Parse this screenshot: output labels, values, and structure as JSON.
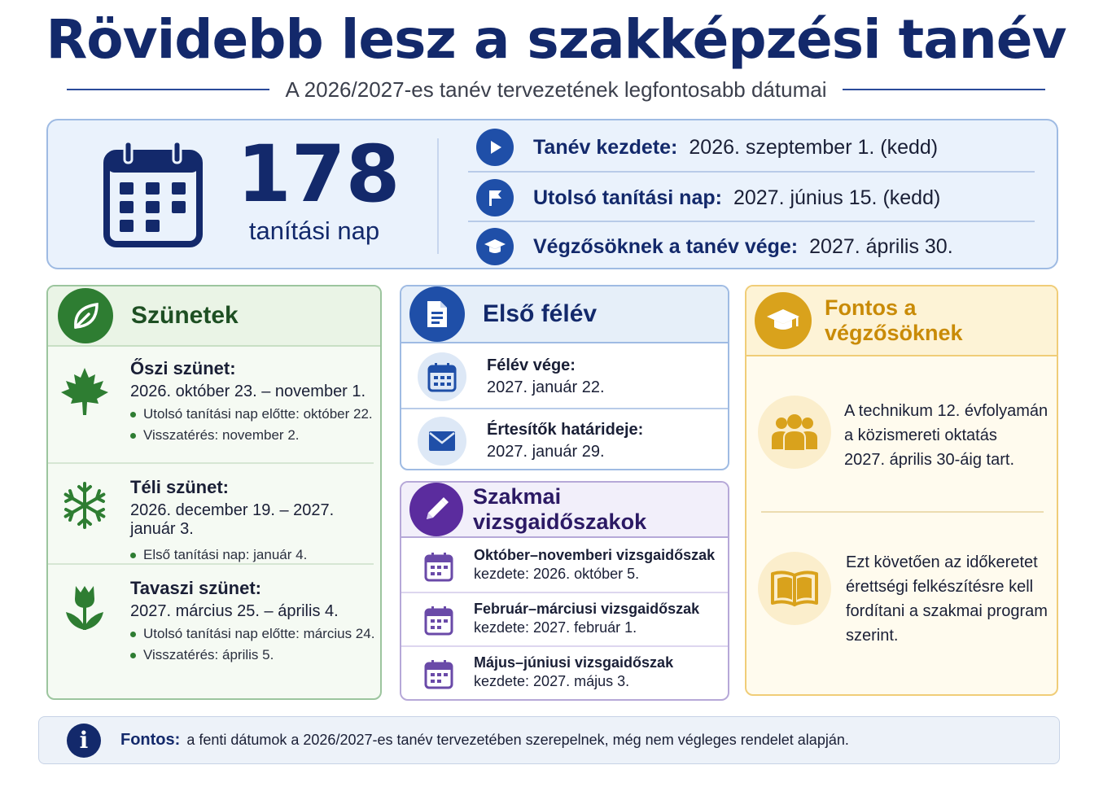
{
  "header": {
    "title": "Rövidebb lesz a szakképzési tanév",
    "subtitle": "A 2026/2027-es tanév tervezetének legfontosabb dátumai"
  },
  "summary": {
    "count": "178",
    "count_label": "tanítási nap",
    "icon": "calendar-icon",
    "key_dates": [
      {
        "icon": "play-icon",
        "label": "Tanév kezdete:",
        "value": "2026. szeptember 1. (kedd)"
      },
      {
        "icon": "flag-icon",
        "label": "Utolsó tanítási nap:",
        "value": "2027. június 15. (kedd)"
      },
      {
        "icon": "graduation-cap-icon",
        "label": "Végzősöknek a tanév vége:",
        "value": "2027. április 30."
      }
    ]
  },
  "breaks": {
    "title": "Szünetek",
    "icon": "leaf-icon",
    "items": [
      {
        "icon": "maple-leaf-icon",
        "title": "Őszi szünet:",
        "range": "2026. október 23. – november 1.",
        "bullets": [
          "Utolsó tanítási nap előtte: október 22.",
          "Visszatérés: november 2."
        ]
      },
      {
        "icon": "snowflake-icon",
        "title": "Téli szünet:",
        "range": "2026. december 19. – 2027. január 3.",
        "bullets": [
          "Első tanítási nap: január 4."
        ]
      },
      {
        "icon": "tulip-icon",
        "title": "Tavaszi szünet:",
        "range": "2027. március 25. – április 4.",
        "bullets": [
          "Utolsó tanítási nap előtte: március 24.",
          "Visszatérés: április 5."
        ]
      }
    ]
  },
  "first_semester": {
    "title": "Első félév",
    "icon": "document-icon",
    "rows": [
      {
        "icon": "calendar-icon",
        "label": "Félév vége:",
        "value": "2027. január 22."
      },
      {
        "icon": "envelope-icon",
        "label": "Értesítők határideje:",
        "value": "2027. január 29."
      }
    ]
  },
  "exams": {
    "title": "Szakmai vizsgaidőszakok",
    "icon": "pencil-icon",
    "rows": [
      {
        "icon": "calendar-icon",
        "label": "Október–novemberi vizsgaidőszak",
        "value": "kezdete: 2026. október 5."
      },
      {
        "icon": "calendar-icon",
        "label": "Február–márciusi vizsgaidőszak",
        "value": "kezdete: 2027. február 1."
      },
      {
        "icon": "calendar-icon",
        "label": "Május–júniusi vizsgaidőszak",
        "value": "kezdete: 2027. május 3."
      }
    ]
  },
  "graduates": {
    "title": "Fontos a végzősöknek",
    "icon": "graduation-cap-icon",
    "blocks": [
      {
        "icon": "people-icon",
        "lines": [
          "A technikum 12. évfolyamán",
          "a közismereti oktatás",
          "2027. április 30-áig tart."
        ]
      },
      {
        "icon": "book-icon",
        "lines": [
          "Ezt követően az időkeretet",
          "érettségi felkészítésre kell",
          "fordítani a szakmai program",
          "szerint."
        ]
      }
    ]
  },
  "footer": {
    "icon": "info-icon",
    "label": "Fontos:",
    "text": "a fenti dátumok a 2026/2027-es tanév tervezetében szerepelnek, még nem végleges rendelet alapján."
  },
  "colors": {
    "navy": "#13296b",
    "blue": "#1f4fa8",
    "green": "#2e7d32",
    "purple": "#5b2c9e",
    "gold": "#d9a21c"
  }
}
